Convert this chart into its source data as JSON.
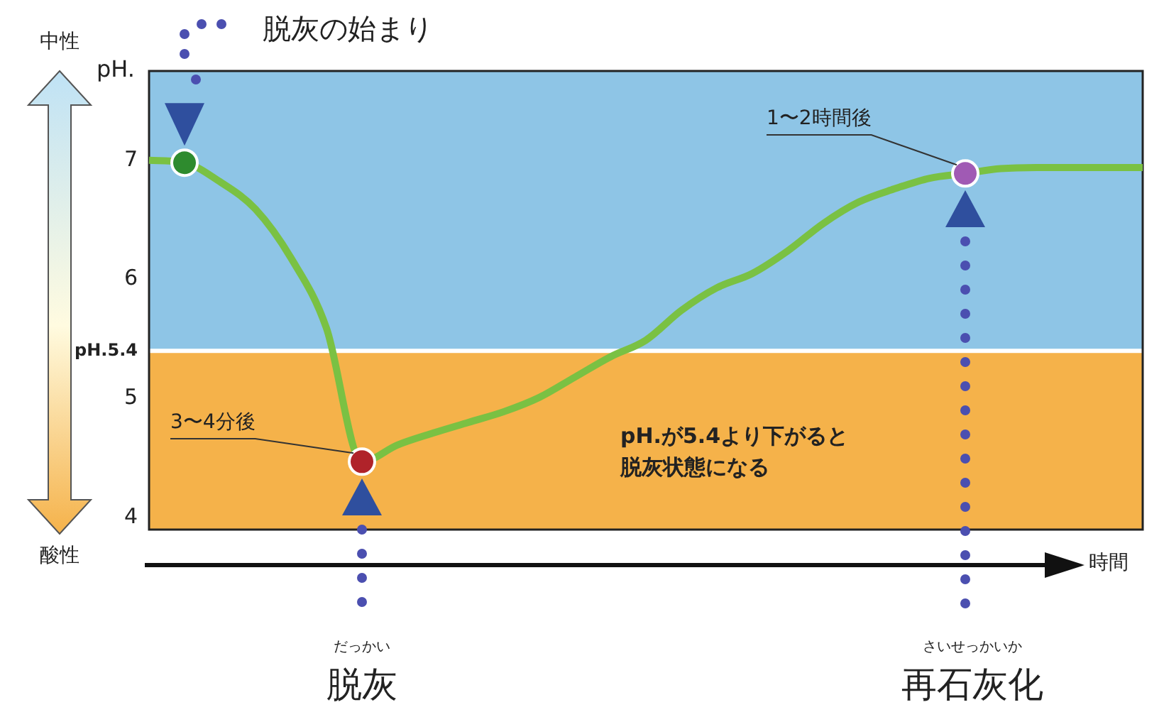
{
  "chart_data": {
    "type": "line",
    "xlabel": "時間",
    "ylabel": "pH.",
    "categories": [
      null,
      null,
      null,
      null,
      null,
      null,
      null,
      null,
      null,
      null,
      null,
      null,
      null,
      null,
      null,
      null,
      null,
      null,
      null,
      null,
      null,
      null,
      null,
      null,
      null,
      null,
      null,
      null,
      null
    ],
    "series": [
      {
        "color": "#7ac143",
        "values": [
          7.0,
          6.98,
          6.82,
          6.59,
          6.18,
          5.59,
          4.47,
          4.61,
          4.71,
          4.8,
          4.89,
          5.01,
          5.18,
          5.35,
          5.49,
          5.74,
          5.93,
          6.05,
          6.24,
          6.47,
          6.65,
          6.76,
          6.85,
          6.89,
          6.93,
          6.94,
          6.94,
          6.94,
          6.94
        ],
        "colors": [
          null,
          "#2e8b2e",
          null,
          null,
          null,
          null,
          "#b0232a",
          null,
          null,
          null,
          null,
          null,
          null,
          null,
          null,
          null,
          null,
          null,
          null,
          null,
          null,
          null,
          null,
          "#a05ab4",
          null,
          null,
          null,
          null,
          null
        ]
      }
    ],
    "ylim": [
      3.9,
      7.75
    ],
    "yticks": [
      4,
      {
        "value": 5,
        "label": "5"
      },
      {
        "value": 5.4,
        "label": "pH.5.4"
      },
      6,
      7
    ],
    "tick_labels": "y",
    "bands": [
      {
        "axis": "y",
        "from": 3.9,
        "to": 5.4,
        "color": "#f5b24a"
      },
      {
        "axis": "y",
        "from": 5.4,
        "to": 7.75,
        "color": "#8ec5e6"
      }
    ],
    "annotations": [
      "脱灰の始まり",
      "3〜4分後",
      "1〜2時間後",
      "pH.が5.4より下がると",
      "脱灰状態になる",
      "だっかい",
      "脱灰",
      "さいせっかいか",
      "再石灰化",
      "中性",
      "酸性"
    ]
  }
}
